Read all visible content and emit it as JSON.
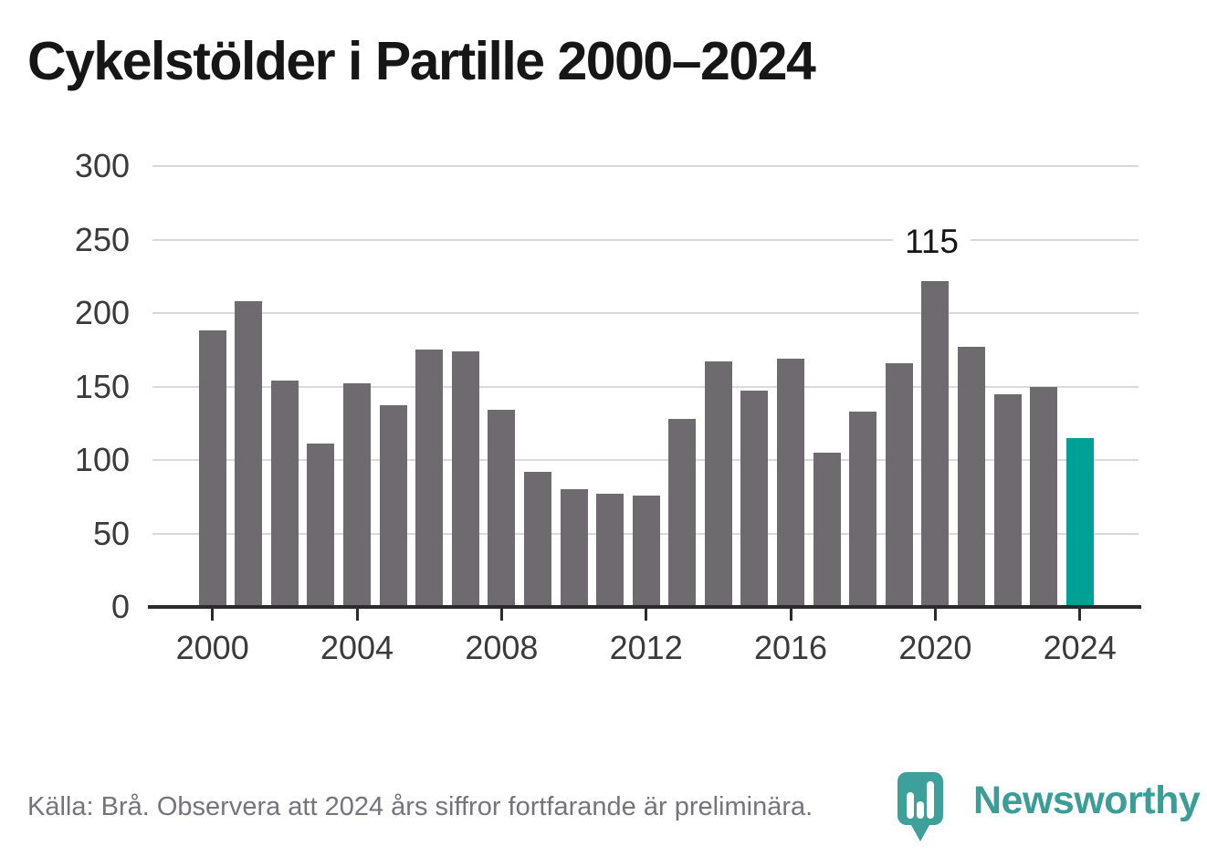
{
  "title": "Cykelstölder i Partille 2000–2024",
  "annotation": {
    "value_label": "115"
  },
  "footer": {
    "source_note": "Källa: Brå. Observera att 2024 års siffror fortfarande är preliminära."
  },
  "logo": {
    "wordmark": "Newsworthy",
    "icon": "bar-chart-pin-icon"
  },
  "colors": {
    "bar": "#6e6a70",
    "highlight": "#00a096",
    "gridline": "#d9d9d9",
    "axis": "#2b2b2b",
    "title_text": "#161616",
    "tick_text": "#3a3a3a",
    "footer_text": "#76737b",
    "logo_teal": "#3b9d97"
  },
  "chart_data": {
    "type": "bar",
    "title": "Cykelstölder i Partille 2000–2024",
    "xlabel": "",
    "ylabel": "",
    "x": [
      2000,
      2001,
      2002,
      2003,
      2004,
      2005,
      2006,
      2007,
      2008,
      2009,
      2010,
      2011,
      2012,
      2013,
      2014,
      2015,
      2016,
      2017,
      2018,
      2019,
      2020,
      2021,
      2022,
      2023,
      2024
    ],
    "values": [
      188,
      208,
      154,
      111,
      152,
      137,
      175,
      174,
      134,
      92,
      80,
      77,
      76,
      128,
      167,
      147,
      169,
      105,
      133,
      166,
      222,
      177,
      145,
      150,
      115
    ],
    "highlight_x": 2024,
    "highlight_value_label": "115",
    "x_tick_labels": [
      "2000",
      "2004",
      "2008",
      "2012",
      "2016",
      "2020",
      "2024"
    ],
    "y_ticks": [
      0,
      50,
      100,
      150,
      200,
      250,
      300
    ],
    "ylim": [
      0,
      300
    ],
    "grid": "horizontal",
    "legend": "none"
  }
}
